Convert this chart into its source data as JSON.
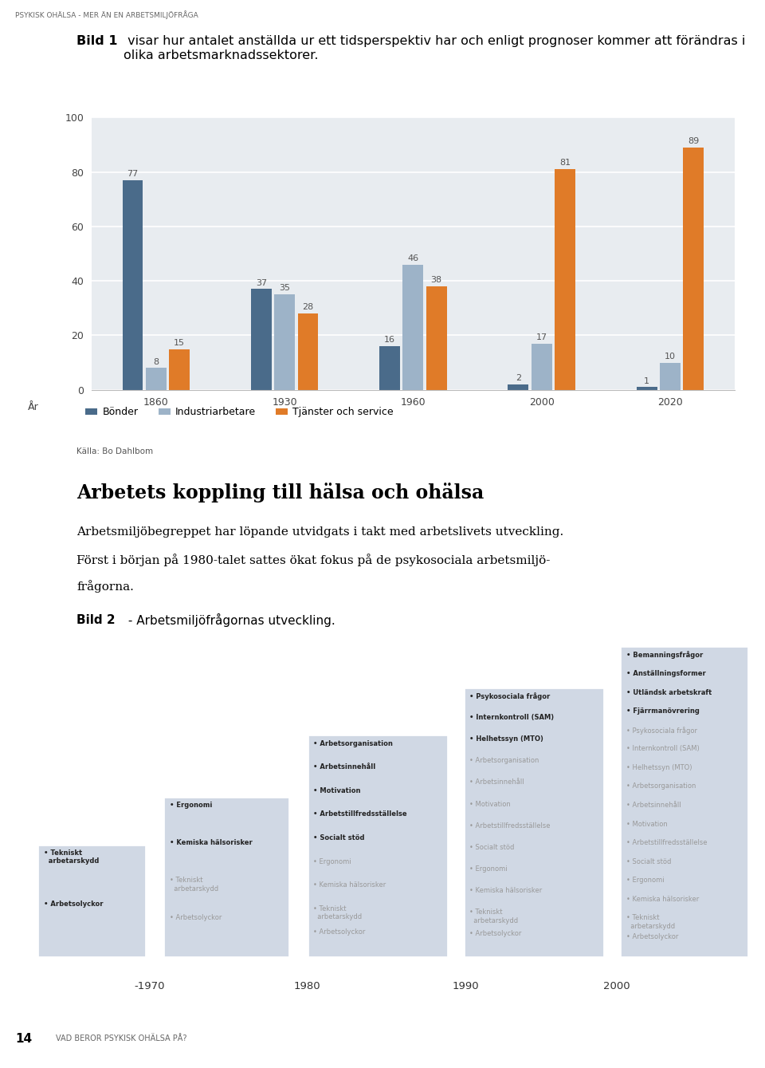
{
  "header_text": "PSYKISK OHÄLSA - MER ÄN EN ARBETSMILJÖFRÅGA",
  "intro_bold": "Bild 1",
  "intro_text": " visar hur antalet anställda ur ett tidsperspektiv har och enligt prognoser kommer att förändras i olika arbetsmarknadssektorer.",
  "chart_bg_color": "#e8ecf0",
  "bar_years": [
    "1860",
    "1930",
    "1960",
    "2000",
    "2020"
  ],
  "bondar": [
    77,
    37,
    16,
    2,
    1
  ],
  "industri": [
    8,
    35,
    46,
    17,
    10
  ],
  "tjanster": [
    15,
    28,
    38,
    81,
    89
  ],
  "bar_color_bondar": "#4a6b8a",
  "bar_color_industri": "#9db3c8",
  "bar_color_tjanster": "#e07b28",
  "ylim": [
    0,
    100
  ],
  "yticks": [
    0,
    20,
    40,
    60,
    80,
    100
  ],
  "xlabel": "År",
  "legend_bondar": "Bönder",
  "legend_industri": "Industriarbetare",
  "legend_tjanster": "Tjänster och service",
  "source_text": "Källa: Bo Dahlbom",
  "section_title": "Arbetets koppling till hälsa och ohälsa",
  "section_body_line1": "Arbetsmiljöbegreppet har löpande utvidgats i takt med arbetslivets utveckling.",
  "section_body_line2": "Först i början på 1980-talet sattes ökat fokus på de psykosociala arbetsmiljö-",
  "section_body_line3": "frågorna.",
  "bild2_bold": "Bild 2",
  "bild2_text": " - Arbetsmiljöfrågornas utveckling.",
  "timeline_years": [
    "-1970",
    "1980",
    "1990",
    "2000"
  ],
  "box_color": "#d0d8e4",
  "footer_page": "14",
  "footer_text": "VAD BEROR PSYKISK OHÄLSA PÅ?"
}
